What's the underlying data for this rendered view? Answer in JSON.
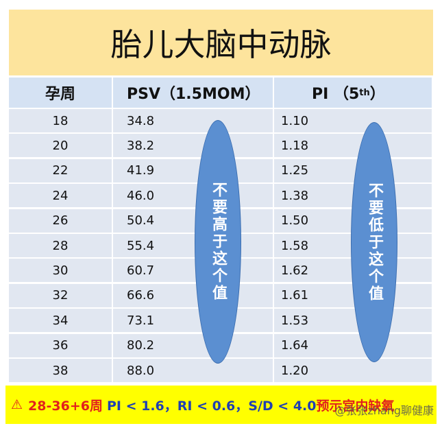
{
  "title": "胎儿大脑中动脉",
  "table": {
    "header": {
      "week": "孕周",
      "psv": "PSV（1.5MOM）",
      "pi": {
        "main": "PI （5",
        "sup": "th",
        "close": "）"
      }
    },
    "rows": [
      [
        "18",
        "34.8",
        "1.10"
      ],
      [
        "20",
        "38.2",
        "1.18"
      ],
      [
        "22",
        "41.9",
        "1.25"
      ],
      [
        "24",
        "46.0",
        "1.38"
      ],
      [
        "26",
        "50.4",
        "1.50"
      ],
      [
        "28",
        "55.4",
        "1.58"
      ],
      [
        "30",
        "60.7",
        "1.62"
      ],
      [
        "32",
        "66.6",
        "1.61"
      ],
      [
        "34",
        "73.1",
        "1.53"
      ],
      [
        "36",
        "80.2",
        "1.64"
      ],
      [
        "38",
        "88.0",
        "1.20"
      ]
    ]
  },
  "notes": {
    "psv": "不要高于这个值",
    "pi": "不要低于这个值"
  },
  "footer": {
    "icon": "⚠",
    "weeks": "28-36+6周",
    "criteria": "PI < 1.6，RI < 0.6，S/D < 4.0",
    "meaning": "预示宫内缺氧"
  },
  "watermark": "@张张zhang聊健康"
}
